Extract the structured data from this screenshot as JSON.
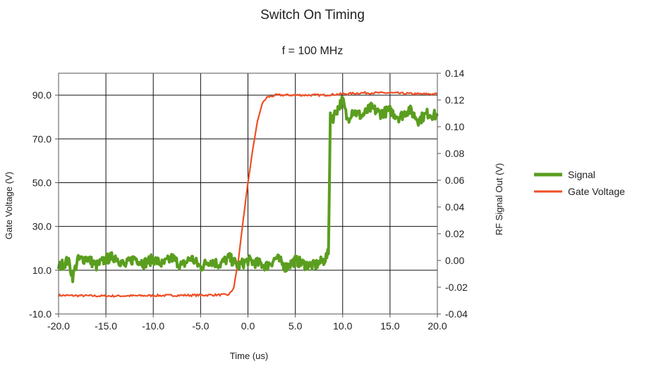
{
  "chart_data": {
    "type": "line",
    "title": "Switch On Timing",
    "subtitle": "f = 100 MHz",
    "xlabel": "Time (us)",
    "ylabel_left": "Gate Voltage (V)",
    "ylabel_right": "RF Signal Out (V)",
    "xlim": [
      -20,
      20
    ],
    "ylim_left": [
      -10,
      100
    ],
    "ylim_right": [
      -0.04,
      0.14
    ],
    "x_ticks": [
      "-20.0",
      "-15.0",
      "-10.0",
      "-5.0",
      "0.0",
      "5.0",
      "10.0",
      "15.0",
      "20.0"
    ],
    "x_tick_values": [
      -20,
      -15,
      -10,
      -5,
      0,
      5,
      10,
      15,
      20
    ],
    "y_left_ticks": [
      "-10.0",
      "10.0",
      "30.0",
      "50.0",
      "70.0",
      "90.0"
    ],
    "y_left_tick_values": [
      -10,
      10,
      30,
      50,
      70,
      90
    ],
    "y_right_ticks": [
      "-0.04",
      "-0.02",
      "0.00",
      "0.02",
      "0.04",
      "0.06",
      "0.08",
      "0.10",
      "0.12",
      "0.14"
    ],
    "y_right_tick_values": [
      -0.04,
      -0.02,
      0.0,
      0.02,
      0.04,
      0.06,
      0.08,
      0.1,
      0.12,
      0.14
    ],
    "grid": true,
    "legend_position": "right",
    "series": [
      {
        "name": "Signal",
        "axis": "right",
        "color": "#5a9e1f",
        "x": [
          -20,
          -19,
          -18.5,
          -18,
          -17,
          -16,
          -15,
          -14,
          -13,
          -12,
          -11,
          -10,
          -9,
          -8,
          -7,
          -6,
          -5,
          -4,
          -3,
          -2,
          -1,
          0,
          1,
          2,
          3,
          4,
          5,
          6,
          7,
          8,
          8.5,
          8.7,
          9,
          9.5,
          10,
          10.5,
          11,
          12,
          13,
          14,
          15,
          16,
          17,
          18,
          19,
          20
        ],
        "values": [
          -0.005,
          0.0,
          -0.012,
          0.0,
          0.002,
          -0.004,
          0.001,
          0.003,
          -0.004,
          0.002,
          -0.002,
          0.001,
          -0.003,
          0.002,
          -0.004,
          0.002,
          -0.005,
          0.0,
          -0.003,
          0.002,
          -0.004,
          0.0,
          -0.002,
          -0.004,
          0.002,
          -0.005,
          0.0,
          -0.003,
          -0.004,
          0.0,
          0.005,
          0.11,
          0.107,
          0.114,
          0.12,
          0.105,
          0.112,
          0.108,
          0.114,
          0.11,
          0.112,
          0.107,
          0.113,
          0.105,
          0.11,
          0.108
        ]
      },
      {
        "name": "Gate Voltage",
        "axis": "left",
        "color": "#f04e23",
        "x": [
          -20,
          -15,
          -10,
          -5,
          -2,
          -1.5,
          -1,
          -0.5,
          0,
          0.5,
          1,
          1.5,
          2,
          3,
          5,
          8,
          10,
          12,
          15,
          18,
          20
        ],
        "values": [
          -1.5,
          -1.8,
          -1.6,
          -1.4,
          -1.2,
          2,
          15,
          33,
          50,
          65,
          78,
          86,
          89,
          90,
          90,
          90,
          90.5,
          91,
          91,
          90.5,
          90.5
        ]
      }
    ]
  }
}
